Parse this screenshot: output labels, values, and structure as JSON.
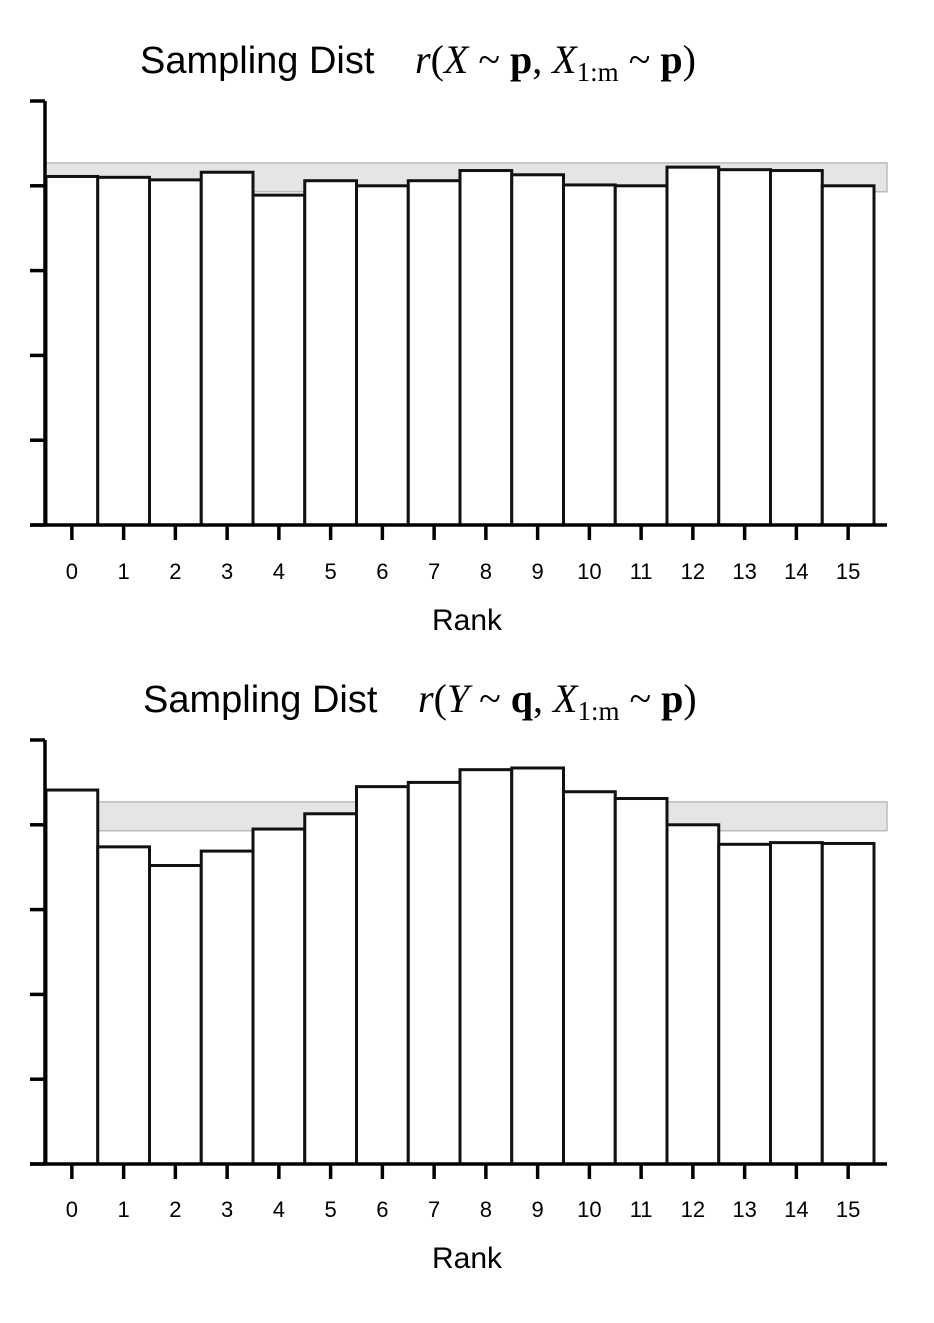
{
  "chart_data": [
    {
      "type": "bar",
      "title": "Sampling Dist",
      "title_math": {
        "arg1": "X",
        "dist1": "p",
        "arg2": "X",
        "sub2": "1:m",
        "dist2": "p"
      },
      "xlabel": "Rank",
      "ylabel": "",
      "categories": [
        "0",
        "1",
        "2",
        "3",
        "4",
        "5",
        "6",
        "7",
        "8",
        "9",
        "10",
        "11",
        "12",
        "13",
        "14",
        "15"
      ],
      "values": [
        4.11,
        4.1,
        4.07,
        4.16,
        3.89,
        4.06,
        4.0,
        4.06,
        4.18,
        4.13,
        4.01,
        4.0,
        4.22,
        4.19,
        4.18,
        4.0
      ],
      "ylim": [
        0,
        5
      ],
      "yticks": [
        0,
        1,
        2,
        3,
        4,
        5
      ],
      "band": [
        3.93,
        4.27
      ],
      "grid": false,
      "legend": "none"
    },
    {
      "type": "bar",
      "title": "Sampling Dist",
      "title_math": {
        "arg1": "Y",
        "dist1": "q",
        "arg2": "X",
        "sub2": "1:m",
        "dist2": "p"
      },
      "xlabel": "Rank",
      "ylabel": "",
      "categories": [
        "0",
        "1",
        "2",
        "3",
        "4",
        "5",
        "6",
        "7",
        "8",
        "9",
        "10",
        "11",
        "12",
        "13",
        "14",
        "15"
      ],
      "values": [
        4.41,
        3.74,
        3.52,
        3.69,
        3.95,
        4.13,
        4.45,
        4.5,
        4.65,
        4.67,
        4.39,
        4.31,
        4.0,
        3.77,
        3.79,
        3.78
      ],
      "ylim": [
        0,
        5
      ],
      "yticks": [
        0,
        1,
        2,
        3,
        4,
        5
      ],
      "band": [
        3.93,
        4.27
      ],
      "grid": false,
      "legend": "none"
    }
  ]
}
